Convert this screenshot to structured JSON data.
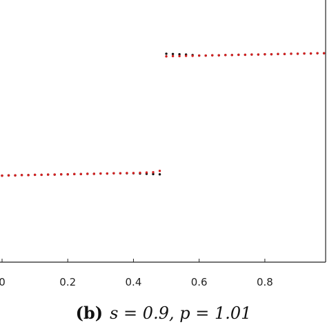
{
  "chart_data": {
    "type": "scatter",
    "caption": {
      "label": "(b)",
      "text": "s = 0.9,  p = 1.01"
    },
    "x": [
      0,
      0.02,
      0.04,
      0.06,
      0.08,
      0.1,
      0.12,
      0.14,
      0.16,
      0.18,
      0.2,
      0.22,
      0.24,
      0.26,
      0.28,
      0.3,
      0.32,
      0.34,
      0.36,
      0.38,
      0.4,
      0.42,
      0.44,
      0.46,
      0.48,
      0.5,
      0.52,
      0.54,
      0.56,
      0.58,
      0.6,
      0.62,
      0.64,
      0.66,
      0.68,
      0.7,
      0.72,
      0.74,
      0.76,
      0.78,
      0.8,
      0.82,
      0.84,
      0.86,
      0.88,
      0.9,
      0.92,
      0.94,
      0.96,
      0.98
    ],
    "series": [
      {
        "color": "#111111",
        "values": [
          0.33,
          0.331,
          0.331,
          0.332,
          0.332,
          0.333,
          0.333,
          0.334,
          0.334,
          0.335,
          0.335,
          0.336,
          0.336,
          0.337,
          0.337,
          0.338,
          0.338,
          0.339,
          0.339,
          0.339,
          0.339,
          0.338,
          0.337,
          0.336,
          0.335,
          0.795,
          0.794,
          0.793,
          0.792,
          0.79,
          0.788,
          0.788,
          0.789,
          0.789,
          0.79,
          0.79,
          0.791,
          0.791,
          0.792,
          0.792,
          0.793,
          0.793,
          0.794,
          0.794,
          0.795,
          0.795,
          0.796,
          0.796,
          0.797,
          0.797
        ]
      },
      {
        "color": "#d42020",
        "values": [
          0.33,
          0.331,
          0.331,
          0.332,
          0.332,
          0.333,
          0.333,
          0.334,
          0.334,
          0.335,
          0.335,
          0.336,
          0.336,
          0.337,
          0.337,
          0.338,
          0.338,
          0.339,
          0.339,
          0.34,
          0.34,
          0.341,
          0.342,
          0.343,
          0.348,
          0.785,
          0.786,
          0.786,
          0.787,
          0.787,
          0.788,
          0.788,
          0.789,
          0.789,
          0.79,
          0.79,
          0.791,
          0.791,
          0.792,
          0.792,
          0.793,
          0.793,
          0.794,
          0.794,
          0.795,
          0.795,
          0.796,
          0.796,
          0.797,
          0.797
        ]
      }
    ],
    "xlim": [
      0,
      0.985
    ],
    "ylim": [
      0,
      1
    ],
    "xticks": [
      0,
      0.2,
      0.4,
      0.6,
      0.8
    ]
  }
}
